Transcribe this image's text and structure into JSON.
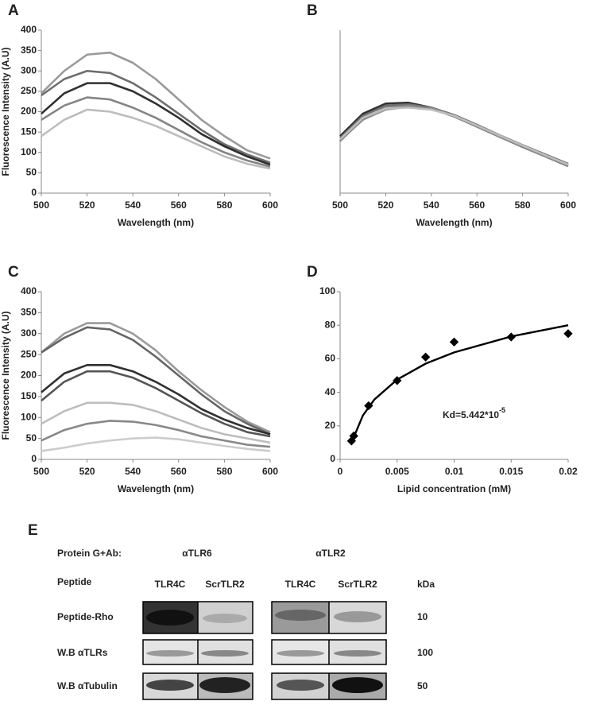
{
  "chart_data": [
    {
      "type": "line",
      "panel": "A",
      "xlabel": "Wavelength (nm)",
      "ylabel": "Fluorescence Intensity (A.U)",
      "x": [
        500,
        510,
        520,
        530,
        540,
        550,
        560,
        570,
        580,
        590,
        600
      ],
      "series": [
        {
          "color": "#9a9a9a",
          "values": [
            245,
            300,
            340,
            345,
            320,
            280,
            230,
            180,
            140,
            105,
            85
          ]
        },
        {
          "color": "#6e6e6e",
          "values": [
            240,
            280,
            300,
            295,
            270,
            235,
            195,
            155,
            120,
            95,
            75
          ]
        },
        {
          "color": "#303030",
          "values": [
            195,
            245,
            270,
            270,
            250,
            220,
            185,
            145,
            115,
            90,
            70
          ]
        },
        {
          "color": "#858585",
          "values": [
            180,
            215,
            235,
            230,
            210,
            185,
            155,
            125,
            100,
            80,
            65
          ]
        },
        {
          "color": "#bdbdbd",
          "values": [
            140,
            180,
            205,
            200,
            185,
            165,
            140,
            115,
            90,
            72,
            60
          ]
        }
      ],
      "xlim": [
        500,
        600
      ],
      "xticks": [
        500,
        520,
        540,
        560,
        580,
        600
      ],
      "ylim": [
        0,
        400
      ],
      "yticks": [
        0,
        50,
        100,
        150,
        200,
        250,
        300,
        350,
        400
      ],
      "grid": false
    },
    {
      "type": "line",
      "panel": "B",
      "xlabel": "Wavelength (nm)",
      "x": [
        500,
        510,
        520,
        530,
        540,
        550,
        560,
        570,
        580,
        590,
        600
      ],
      "series": [
        {
          "color": "#303030",
          "values": [
            140,
            195,
            220,
            222,
            210,
            190,
            165,
            140,
            115,
            92,
            70
          ]
        },
        {
          "color": "#6e6e6e",
          "values": [
            135,
            190,
            215,
            218,
            210,
            192,
            168,
            142,
            118,
            95,
            72
          ]
        },
        {
          "color": "#9a9a9a",
          "values": [
            130,
            180,
            205,
            212,
            208,
            190,
            165,
            140,
            116,
            92,
            68
          ]
        },
        {
          "color": "#858585",
          "values": [
            128,
            182,
            210,
            215,
            207,
            188,
            163,
            138,
            113,
            90,
            66
          ]
        },
        {
          "color": "#bdbdbd",
          "values": [
            132,
            185,
            208,
            210,
            205,
            190,
            166,
            141,
            117,
            93,
            70
          ]
        }
      ],
      "xlim": [
        500,
        600
      ],
      "xticks": [
        500,
        520,
        540,
        560,
        580,
        600
      ],
      "ylim": [
        0,
        400
      ],
      "grid": false
    },
    {
      "type": "line",
      "panel": "C",
      "xlabel": "Wavelength (nm)",
      "ylabel": "Fluorescence Intensity (A.U)",
      "x": [
        500,
        510,
        520,
        530,
        540,
        550,
        560,
        570,
        580,
        590,
        600
      ],
      "series": [
        {
          "color": "#9a9a9a",
          "values": [
            255,
            300,
            325,
            325,
            300,
            260,
            210,
            165,
            125,
            90,
            65
          ]
        },
        {
          "color": "#666666",
          "values": [
            255,
            290,
            315,
            310,
            285,
            245,
            200,
            155,
            115,
            85,
            60
          ]
        },
        {
          "color": "#303030",
          "values": [
            160,
            205,
            225,
            225,
            210,
            185,
            155,
            120,
            95,
            75,
            60
          ]
        },
        {
          "color": "#555555",
          "values": [
            140,
            185,
            210,
            210,
            195,
            170,
            140,
            110,
            85,
            65,
            55
          ]
        },
        {
          "color": "#bdbdbd",
          "values": [
            85,
            115,
            135,
            135,
            130,
            115,
            95,
            75,
            60,
            50,
            40
          ]
        },
        {
          "color": "#888888",
          "values": [
            45,
            70,
            85,
            92,
            90,
            82,
            70,
            55,
            45,
            35,
            30
          ]
        },
        {
          "color": "#cccccc",
          "values": [
            20,
            28,
            38,
            45,
            50,
            52,
            48,
            40,
            32,
            25,
            20
          ]
        }
      ],
      "xlim": [
        500,
        600
      ],
      "xticks": [
        500,
        520,
        540,
        560,
        580,
        600
      ],
      "ylim": [
        0,
        400
      ],
      "yticks": [
        0,
        50,
        100,
        150,
        200,
        250,
        300,
        350,
        400
      ],
      "grid": false
    },
    {
      "type": "scatter",
      "panel": "D",
      "xlabel": "Lipid concentration (mM)",
      "annotation": "Kd=5.442*10",
      "annotation_sup": "-5",
      "x": [
        0.001,
        0.0012,
        0.0025,
        0.005,
        0.0075,
        0.01,
        0.015,
        0.02
      ],
      "values": [
        11,
        14,
        32,
        47,
        61,
        70,
        73,
        75
      ],
      "color": "#000000",
      "fit": {
        "x": [
          0.001,
          0.002,
          0.003,
          0.005,
          0.0075,
          0.01,
          0.015,
          0.02
        ],
        "values": [
          10,
          26.2,
          35.7,
          47.6,
          57.1,
          63.8,
          73.3,
          80
        ]
      },
      "xlim": [
        0,
        0.02
      ],
      "xticks": [
        0,
        0.005,
        0.01,
        0.015,
        0.02
      ],
      "ylim": [
        0,
        100
      ],
      "yticks": [
        0,
        20,
        40,
        60,
        80,
        100
      ],
      "grid": false
    }
  ],
  "panel_e": {
    "panel": "E",
    "protein_label": "Protein G+Ab:",
    "antibodies": [
      "αTLR6",
      "αTLR2"
    ],
    "peptide_label": "Peptide",
    "lanes": [
      "TLR4C",
      "ScrTLR2",
      "TLR4C",
      "ScrTLR2"
    ],
    "unit": "kDa",
    "rows": [
      {
        "label": "Peptide-Rho",
        "kda": "10"
      },
      {
        "label": "W.B αTLRs",
        "kda": "100"
      },
      {
        "label": "W.B αTubulin",
        "kda": "50"
      }
    ]
  }
}
